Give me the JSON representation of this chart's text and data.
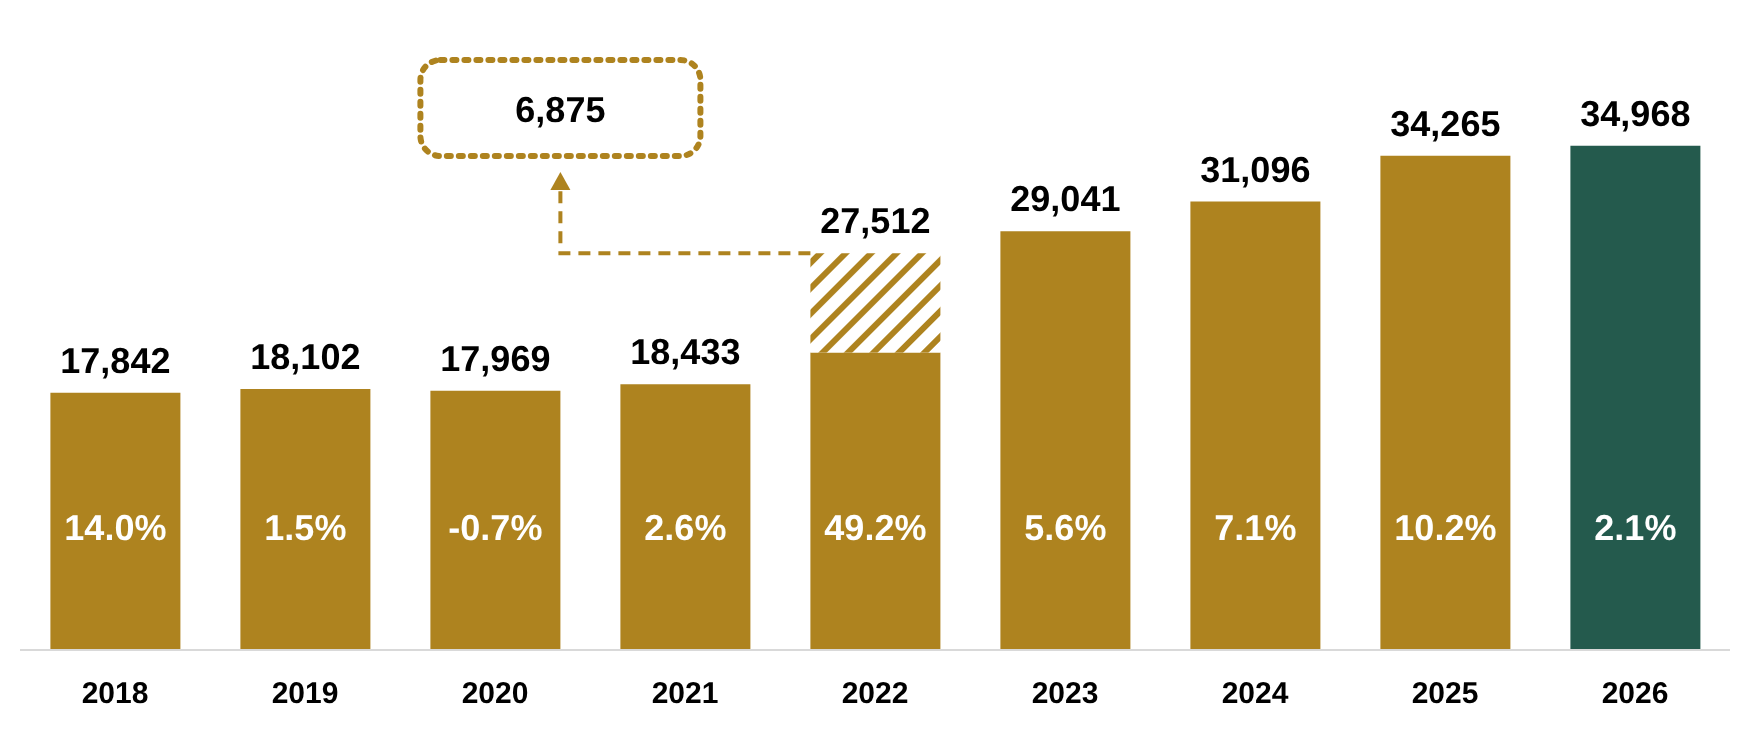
{
  "chart_data": {
    "type": "bar",
    "stacked": true,
    "categories": [
      "2018",
      "2019",
      "2020",
      "2021",
      "2022",
      "2023",
      "2024",
      "2025",
      "2026"
    ],
    "series": [
      {
        "color": "#ae831f",
        "colors": [
          "#ae831f",
          "#ae831f",
          "#ae831f",
          "#ae831f",
          "#ae831f",
          "#ae831f",
          "#ae831f",
          "#ae831f",
          "#245a4d"
        ],
        "values": [
          17842,
          18102,
          17969,
          18433,
          20637,
          29041,
          31096,
          34265,
          34968
        ],
        "value_labels": [
          "17,842",
          "18,102",
          "17,969",
          "18,433",
          null,
          "29,041",
          "31,096",
          "34,265",
          "34,968"
        ]
      },
      {
        "color": "#ae831f",
        "values": [
          null,
          null,
          null,
          null,
          6875,
          null,
          null,
          null,
          null
        ]
      }
    ],
    "totals": [
      null,
      null,
      null,
      null,
      "27,512",
      null,
      null,
      null,
      null
    ],
    "annotations": [
      "14.0%",
      "1.5%",
      "-0.7%",
      "2.6%",
      "49.2%",
      "5.6%",
      "7.1%",
      "10.2%",
      "2.1%",
      "6,875"
    ],
    "legend": false,
    "grid": false
  }
}
